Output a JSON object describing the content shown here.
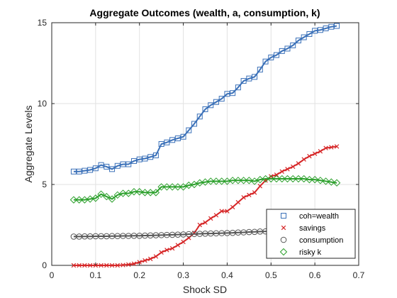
{
  "chart_data": {
    "type": "line",
    "title": "Aggregate Outcomes (wealth, a, consumption, k)",
    "xlabel": "Shock SD",
    "ylabel": "Aggregate Levels",
    "xlim": [
      0,
      0.7
    ],
    "ylim": [
      0,
      15
    ],
    "xticks": [
      "0",
      "0.1",
      "0.2",
      "0.3",
      "0.4",
      "0.5",
      "0.6",
      "0.7"
    ],
    "yticks": [
      "0",
      "5",
      "10",
      "15"
    ],
    "grid": true,
    "legend_position": "bottom-right",
    "x": [
      0.05,
      0.0625,
      0.075,
      0.0875,
      0.1,
      0.1125,
      0.125,
      0.1375,
      0.15,
      0.1625,
      0.175,
      0.1875,
      0.2,
      0.2125,
      0.225,
      0.2375,
      0.25,
      0.2625,
      0.275,
      0.2875,
      0.3,
      0.3125,
      0.325,
      0.3375,
      0.35,
      0.3625,
      0.375,
      0.3875,
      0.4,
      0.4125,
      0.425,
      0.4375,
      0.45,
      0.4625,
      0.475,
      0.4875,
      0.5,
      0.5125,
      0.525,
      0.5375,
      0.55,
      0.5625,
      0.575,
      0.5875,
      0.6,
      0.6125,
      0.625,
      0.6375,
      0.65
    ],
    "series": [
      {
        "name": "coh=wealth",
        "color": "#3a70b8",
        "marker": "square",
        "values": [
          5.8,
          5.8,
          5.85,
          5.9,
          6.0,
          6.2,
          6.1,
          5.95,
          6.15,
          6.25,
          6.25,
          6.45,
          6.55,
          6.6,
          6.7,
          6.8,
          7.5,
          7.6,
          7.75,
          7.85,
          7.95,
          8.35,
          8.75,
          9.2,
          9.65,
          9.9,
          10.1,
          10.3,
          10.6,
          10.65,
          11.0,
          11.4,
          11.55,
          11.65,
          12.1,
          12.6,
          12.85,
          13.0,
          13.25,
          13.4,
          13.6,
          13.9,
          14.1,
          14.3,
          14.5,
          14.55,
          14.65,
          14.75,
          14.8
        ]
      },
      {
        "name": "savings",
        "color": "#d62728",
        "marker": "x",
        "values": [
          0.0,
          0.0,
          0.0,
          0.0,
          0.0,
          0.0,
          0.0,
          0.0,
          0.0,
          0.02,
          0.05,
          0.1,
          0.2,
          0.3,
          0.4,
          0.55,
          0.8,
          0.95,
          1.05,
          1.25,
          1.45,
          1.7,
          2.0,
          2.5,
          2.65,
          2.9,
          3.1,
          3.35,
          3.35,
          3.6,
          3.9,
          4.2,
          4.35,
          4.5,
          4.9,
          5.25,
          5.5,
          5.6,
          5.8,
          5.95,
          6.1,
          6.3,
          6.55,
          6.75,
          6.9,
          7.05,
          7.25,
          7.3,
          7.35
        ]
      },
      {
        "name": "consumption",
        "color": "#555555",
        "marker": "circle",
        "values": [
          1.78,
          1.78,
          1.79,
          1.79,
          1.8,
          1.8,
          1.8,
          1.81,
          1.81,
          1.82,
          1.82,
          1.83,
          1.83,
          1.84,
          1.85,
          1.86,
          1.87,
          1.88,
          1.89,
          1.9,
          1.91,
          1.93,
          1.94,
          1.95,
          1.96,
          1.97,
          1.98,
          1.99,
          2.0,
          2.01,
          2.03,
          2.04,
          2.06,
          2.07,
          2.09,
          2.1,
          2.12,
          2.13,
          2.15,
          2.16,
          2.18,
          2.19,
          2.21,
          2.22,
          2.24,
          2.26,
          2.28,
          2.3,
          2.32
        ]
      },
      {
        "name": "risky k",
        "color": "#2ca02c",
        "marker": "diamond",
        "values": [
          4.05,
          4.05,
          4.05,
          4.1,
          4.15,
          4.4,
          4.25,
          4.1,
          4.35,
          4.45,
          4.45,
          4.55,
          4.55,
          4.5,
          4.5,
          4.5,
          4.85,
          4.85,
          4.85,
          4.85,
          4.85,
          4.95,
          5.0,
          5.1,
          5.15,
          5.2,
          5.2,
          5.2,
          5.2,
          5.25,
          5.25,
          5.25,
          5.25,
          5.2,
          5.3,
          5.35,
          5.35,
          5.35,
          5.35,
          5.35,
          5.35,
          5.35,
          5.35,
          5.3,
          5.3,
          5.25,
          5.2,
          5.15,
          5.1
        ]
      }
    ]
  }
}
